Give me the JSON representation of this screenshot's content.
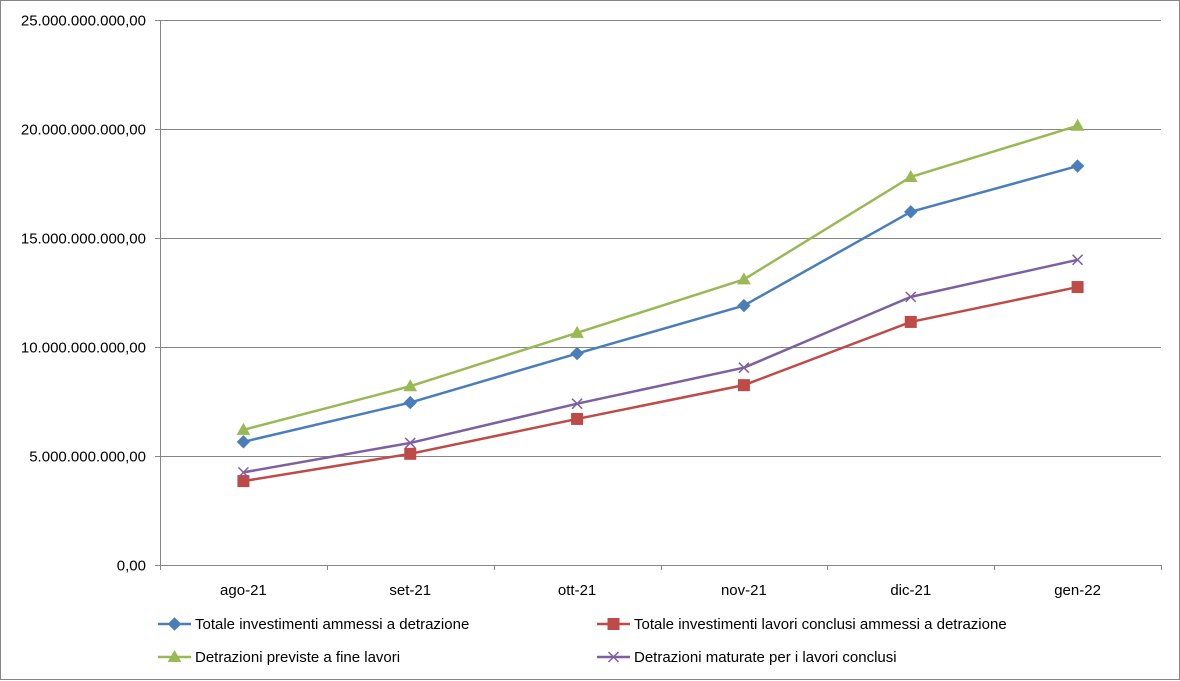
{
  "chart_data": {
    "type": "line",
    "title": "",
    "xlabel": "",
    "ylabel": "",
    "categories": [
      "ago-21",
      "set-21",
      "ott-21",
      "nov-21",
      "dic-21",
      "gen-22"
    ],
    "ylim": [
      0,
      25000000000
    ],
    "yticks": [
      0,
      5000000000,
      10000000000,
      15000000000,
      20000000000,
      25000000000
    ],
    "ytick_labels": [
      "0,00",
      "5.000.000.000,00",
      "10.000.000.000,00",
      "15.000.000.000,00",
      "20.000.000.000,00",
      "25.000.000.000,00"
    ],
    "grid": true,
    "legend_position": "bottom",
    "series": [
      {
        "name": "Totale investimenti ammessi a detrazione",
        "color": "#4a7ebb",
        "marker": "diamond",
        "values": [
          5650000000,
          7450000000,
          9700000000,
          11900000000,
          16200000000,
          18300000000
        ]
      },
      {
        "name": "Totale investimenti lavori conclusi ammessi a detrazione",
        "color": "#be4b48",
        "marker": "square",
        "values": [
          3850000000,
          5100000000,
          6700000000,
          8250000000,
          11150000000,
          12750000000
        ]
      },
      {
        "name": "Detrazioni previste a fine lavori",
        "color": "#98b954",
        "marker": "triangle",
        "values": [
          6200000000,
          8200000000,
          10650000000,
          13100000000,
          17800000000,
          20150000000
        ]
      },
      {
        "name": "Detrazioni maturate per i lavori conclusi",
        "color": "#7d60a0",
        "marker": "x",
        "values": [
          4250000000,
          5600000000,
          7400000000,
          9050000000,
          12300000000,
          14000000000
        ]
      }
    ]
  }
}
